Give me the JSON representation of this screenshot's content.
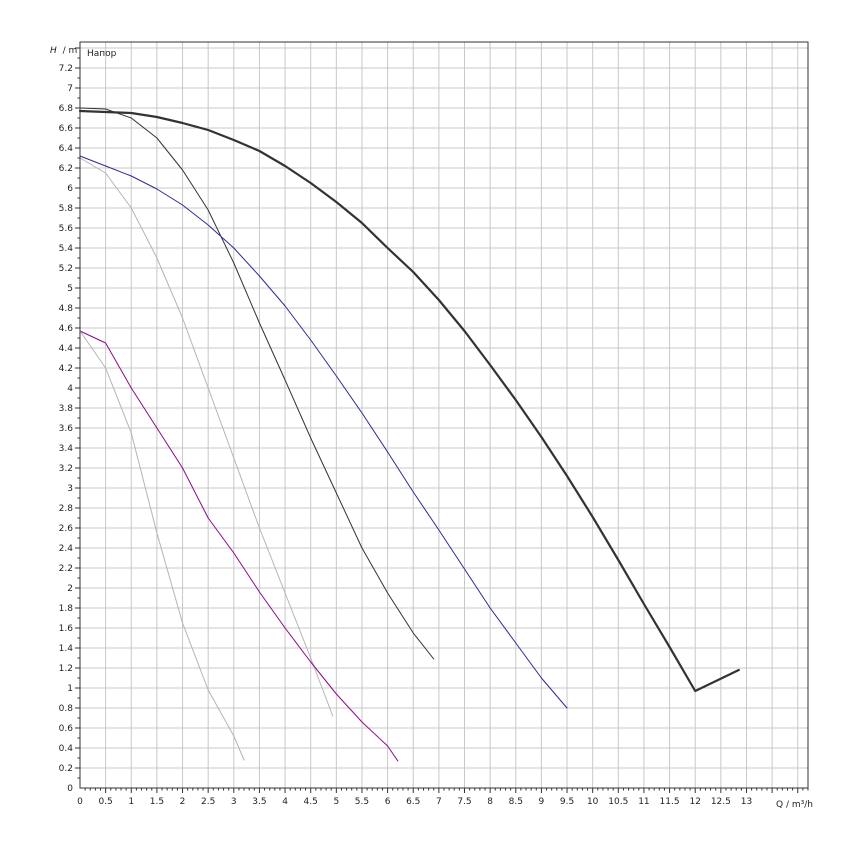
{
  "chart_data": {
    "type": "line",
    "title": "",
    "annotation": "Напор",
    "ylabel_symbol": "H",
    "ylabel_unit": "/ m",
    "xlabel": "Q / m³/h",
    "xlim": [
      0,
      14.2
    ],
    "ylim": [
      0,
      7.46
    ],
    "x_ticks": [
      0,
      0.5,
      1,
      1.5,
      2,
      2.5,
      3,
      3.5,
      4,
      4.5,
      5,
      5.5,
      6,
      6.5,
      7,
      7.5,
      8,
      8.5,
      9,
      9.5,
      10,
      10.5,
      11,
      11.5,
      12,
      12.5,
      13
    ],
    "y_ticks": [
      0,
      0.2,
      0.4,
      0.6,
      0.8,
      1,
      1.2,
      1.4,
      1.6,
      1.8,
      2,
      2.2,
      2.4,
      2.6,
      2.8,
      3,
      3.2,
      3.4,
      3.6,
      3.8,
      4,
      4.2,
      4.4,
      4.6,
      4.8,
      5,
      5.2,
      5.4,
      5.6,
      5.8,
      6,
      6.2,
      6.4,
      6.6,
      6.8,
      7,
      7.2
    ],
    "grid": true,
    "colors": {
      "grid": "#c8c8c8",
      "axis": "#333333"
    },
    "series": [
      {
        "color": "#333333",
        "width": 2.2,
        "points": [
          [
            0,
            6.77
          ],
          [
            0.5,
            6.76
          ],
          [
            1,
            6.75
          ],
          [
            1.5,
            6.71
          ],
          [
            2,
            6.65
          ],
          [
            2.5,
            6.58
          ],
          [
            3,
            6.48
          ],
          [
            3.5,
            6.37
          ],
          [
            4,
            6.22
          ],
          [
            4.5,
            6.05
          ],
          [
            5,
            5.86
          ],
          [
            5.5,
            5.65
          ],
          [
            6,
            5.4
          ],
          [
            6.5,
            5.16
          ],
          [
            7,
            4.88
          ],
          [
            7.5,
            4.57
          ],
          [
            8,
            4.23
          ],
          [
            8.5,
            3.88
          ],
          [
            9,
            3.51
          ],
          [
            9.5,
            3.12
          ],
          [
            10,
            2.71
          ],
          [
            10.5,
            2.28
          ],
          [
            11,
            1.84
          ],
          [
            11.5,
            1.41
          ],
          [
            12,
            0.97
          ],
          [
            12.85,
            1.18
          ]
        ]
      },
      {
        "color": "#333333",
        "width": 1,
        "points": [
          [
            0,
            6.8
          ],
          [
            0.5,
            6.79
          ],
          [
            1,
            6.7
          ],
          [
            1.5,
            6.5
          ],
          [
            2,
            6.18
          ],
          [
            2.5,
            5.78
          ],
          [
            3,
            5.25
          ],
          [
            3.5,
            4.65
          ],
          [
            4,
            4.08
          ],
          [
            4.5,
            3.5
          ],
          [
            5,
            2.95
          ],
          [
            5.5,
            2.4
          ],
          [
            6,
            1.95
          ],
          [
            6.5,
            1.55
          ],
          [
            6.9,
            1.29
          ]
        ]
      },
      {
        "color": "#2b2b9a",
        "width": 1,
        "points": [
          [
            0,
            6.32
          ],
          [
            0.5,
            6.22
          ],
          [
            1,
            6.12
          ],
          [
            1.5,
            5.99
          ],
          [
            2,
            5.83
          ],
          [
            2.5,
            5.63
          ],
          [
            3,
            5.4
          ],
          [
            3.5,
            5.12
          ],
          [
            4,
            4.82
          ],
          [
            4.5,
            4.48
          ],
          [
            5,
            4.12
          ],
          [
            5.5,
            3.75
          ],
          [
            6,
            3.36
          ],
          [
            6.5,
            2.96
          ],
          [
            7,
            2.58
          ],
          [
            7.5,
            2.19
          ],
          [
            8,
            1.8
          ],
          [
            8.5,
            1.45
          ],
          [
            9,
            1.1
          ],
          [
            9.5,
            0.8
          ]
        ]
      },
      {
        "color": "#b4b4b4",
        "width": 1,
        "points": [
          [
            0,
            6.3
          ],
          [
            0.5,
            6.15
          ],
          [
            1,
            5.8
          ],
          [
            1.5,
            5.3
          ],
          [
            2,
            4.7
          ],
          [
            2.5,
            4.0
          ],
          [
            3,
            3.3
          ],
          [
            3.5,
            2.6
          ],
          [
            4,
            1.95
          ],
          [
            4.5,
            1.3
          ],
          [
            4.93,
            0.72
          ]
        ]
      },
      {
        "color": "#8b0a8b",
        "width": 1,
        "points": [
          [
            0,
            4.57
          ],
          [
            0.5,
            4.45
          ],
          [
            1,
            4.0
          ],
          [
            1.5,
            3.6
          ],
          [
            2,
            3.2
          ],
          [
            2.5,
            2.7
          ],
          [
            3,
            2.35
          ],
          [
            3.5,
            1.96
          ],
          [
            4,
            1.6
          ],
          [
            4.5,
            1.26
          ],
          [
            5,
            0.94
          ],
          [
            5.5,
            0.66
          ],
          [
            6,
            0.42
          ],
          [
            6.2,
            0.27
          ]
        ]
      },
      {
        "color": "#b4b4b4",
        "width": 1,
        "points": [
          [
            0,
            4.57
          ],
          [
            0.5,
            4.2
          ],
          [
            1,
            3.55
          ],
          [
            1.5,
            2.55
          ],
          [
            2,
            1.65
          ],
          [
            2.5,
            0.98
          ],
          [
            3,
            0.52
          ],
          [
            3.2,
            0.28
          ]
        ]
      }
    ]
  }
}
